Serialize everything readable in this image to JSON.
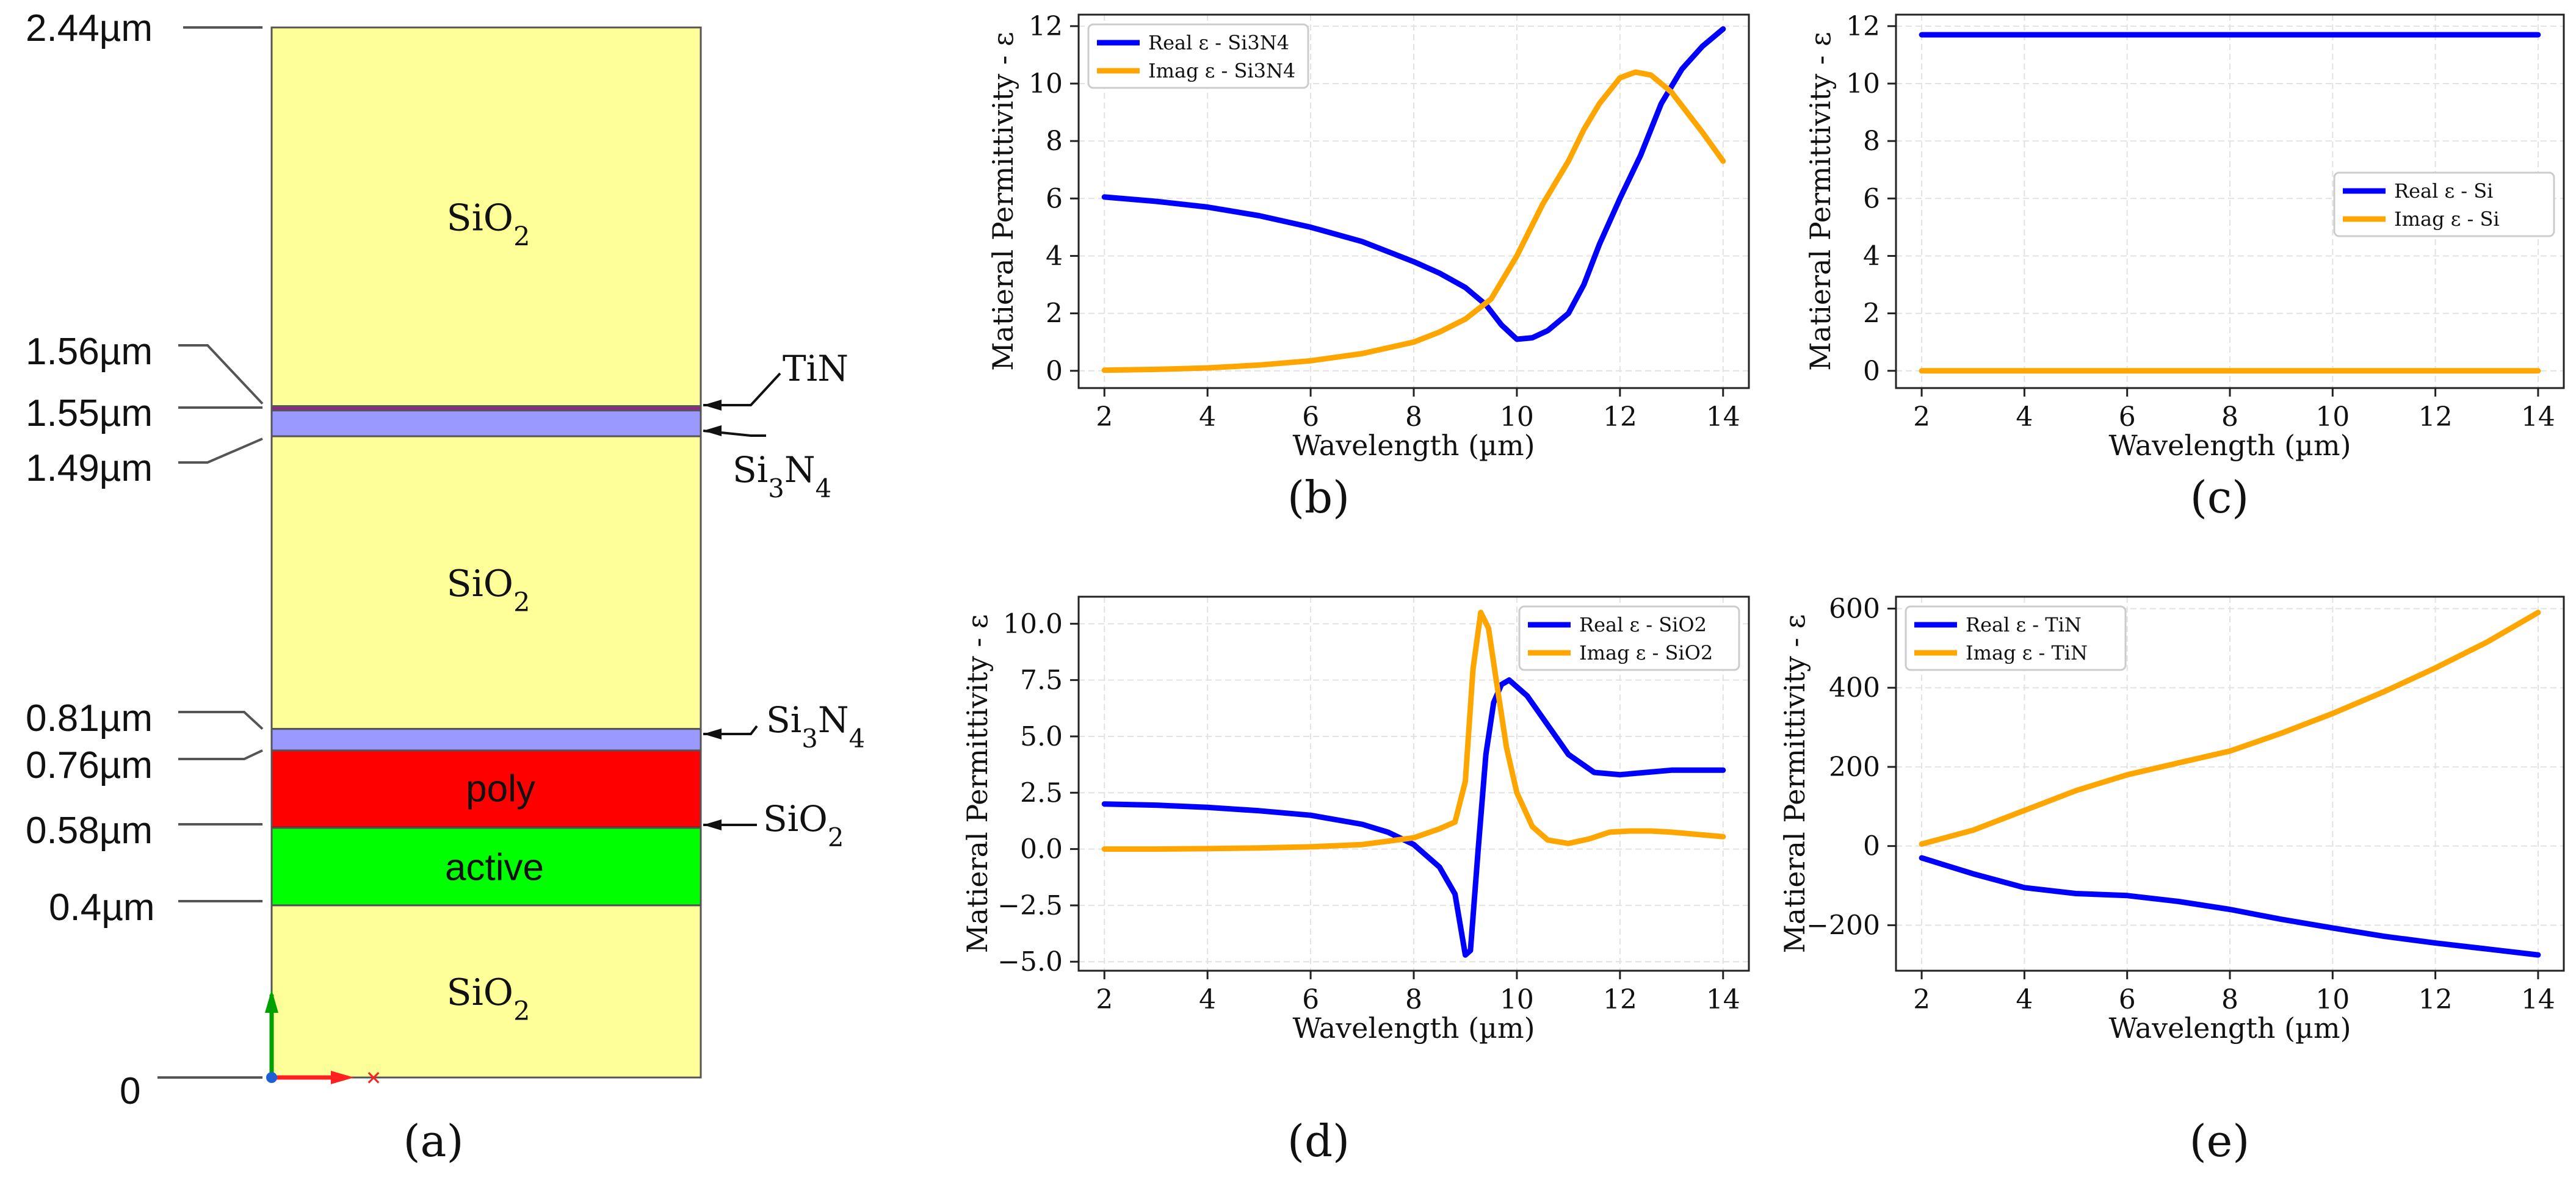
{
  "colors": {
    "real_series": "#0000ff",
    "imag_series": "#ffa500",
    "sio2_layer": "#ffff99",
    "nitride_layer": "#9999ff",
    "tin_layer": "#9b1f8f",
    "poly_layer": "#ff0000",
    "active_layer": "#00ff00",
    "axis_y_arrow": "#00a000",
    "axis_x_arrow": "#ff2020",
    "origin_dot": "#1f5fd6"
  },
  "stack": {
    "panel_label": "(a)",
    "top_label": "2.44µm",
    "layers": [
      {
        "name": "SiO",
        "sub": "2",
        "color_key": "sio2_layer"
      },
      {
        "name": "SiO",
        "sub": "2",
        "color_key": "sio2_layer"
      },
      {
        "name": "poly",
        "sub": "",
        "color_key": "poly_layer"
      },
      {
        "name": "active",
        "sub": "",
        "color_key": "active_layer"
      },
      {
        "name": "SiO",
        "sub": "2",
        "color_key": "sio2_layer"
      }
    ],
    "depths": [
      {
        "label": "2.44µm",
        "value": 2.44
      },
      {
        "label": "1.56µm",
        "value": 1.56
      },
      {
        "label": "1.55µm",
        "value": 1.55
      },
      {
        "label": "1.49µm",
        "value": 1.49
      },
      {
        "label": "0.81µm",
        "value": 0.81
      },
      {
        "label": "0.76µm",
        "value": 0.76
      },
      {
        "label": "0.58µm",
        "value": 0.58
      },
      {
        "label": "0.4µm",
        "value": 0.4
      },
      {
        "label": "0",
        "value": 0
      }
    ],
    "callouts": [
      {
        "label": "TiN",
        "sub": "",
        "parts": []
      },
      {
        "label": "",
        "parts": [
          {
            "t": "Si",
            "s": "3"
          },
          {
            "t": "N",
            "s": "4"
          }
        ]
      },
      {
        "label": "",
        "parts": [
          {
            "t": "Si",
            "s": "3"
          },
          {
            "t": "N",
            "s": "4"
          }
        ]
      },
      {
        "label": "",
        "parts": [
          {
            "t": "SiO",
            "s": "2"
          }
        ]
      }
    ]
  },
  "chart_data": [
    {
      "panel": "(b)",
      "type": "line",
      "xlabel": "Wavelength (µm)",
      "ylabel": "Matieral Permittivity - ε",
      "xlim": [
        1.5,
        14.5
      ],
      "ylim": [
        -0.6,
        12.4
      ],
      "xticks": [
        2,
        4,
        6,
        8,
        10,
        12,
        14
      ],
      "xtick_labels": [
        "2",
        "4",
        "6",
        "8",
        "10",
        "12",
        "14"
      ],
      "yticks": [
        0,
        2,
        4,
        6,
        8,
        10,
        12
      ],
      "ytick_labels": [
        "0",
        "2",
        "4",
        "6",
        "8",
        "10",
        "12"
      ],
      "grid": true,
      "legend": "top-left",
      "series": [
        {
          "name": "Real ε - Si3N4",
          "color_key": "real_series",
          "x": [
            2,
            3,
            4,
            5,
            6,
            7,
            8,
            8.5,
            9,
            9.4,
            9.7,
            10,
            10.3,
            10.6,
            11,
            11.3,
            11.6,
            12,
            12.4,
            12.8,
            13.2,
            13.6,
            14
          ],
          "y": [
            6.05,
            5.9,
            5.7,
            5.4,
            5.0,
            4.5,
            3.8,
            3.4,
            2.9,
            2.3,
            1.6,
            1.1,
            1.15,
            1.4,
            2.0,
            3.0,
            4.4,
            6.0,
            7.5,
            9.3,
            10.5,
            11.3,
            11.9
          ]
        },
        {
          "name": "Imag ε - Si3N4",
          "color_key": "imag_series",
          "x": [
            2,
            3,
            4,
            5,
            6,
            7,
            8,
            8.5,
            9,
            9.5,
            10,
            10.5,
            11,
            11.3,
            11.6,
            12,
            12.3,
            12.6,
            13,
            13.3,
            13.6,
            14
          ],
          "y": [
            0.02,
            0.05,
            0.1,
            0.2,
            0.35,
            0.6,
            1.0,
            1.35,
            1.8,
            2.5,
            4.0,
            5.8,
            7.3,
            8.4,
            9.3,
            10.2,
            10.4,
            10.3,
            9.7,
            9.0,
            8.3,
            7.3
          ]
        }
      ]
    },
    {
      "panel": "(c)",
      "type": "line",
      "xlabel": "Wavelength (µm)",
      "ylabel": "Matieral Permittivity - ε",
      "xlim": [
        1.5,
        14.5
      ],
      "ylim": [
        -0.6,
        12.4
      ],
      "xticks": [
        2,
        4,
        6,
        8,
        10,
        12,
        14
      ],
      "xtick_labels": [
        "2",
        "4",
        "6",
        "8",
        "10",
        "12",
        "14"
      ],
      "yticks": [
        0,
        2,
        4,
        6,
        8,
        10,
        12
      ],
      "ytick_labels": [
        "0",
        "2",
        "4",
        "6",
        "8",
        "10",
        "12"
      ],
      "grid": true,
      "legend": "center-right",
      "series": [
        {
          "name": "Real ε - Si",
          "color_key": "real_series",
          "x": [
            2,
            14
          ],
          "y": [
            11.7,
            11.7
          ]
        },
        {
          "name": "Imag ε - Si",
          "color_key": "imag_series",
          "x": [
            2,
            14
          ],
          "y": [
            0,
            0
          ]
        }
      ]
    },
    {
      "panel": "(d)",
      "type": "line",
      "xlabel": "Wavelength (µm)",
      "ylabel": "Matieral Permittivity -  ε",
      "xlim": [
        1.5,
        14.5
      ],
      "ylim": [
        -5.4,
        11.2
      ],
      "xticks": [
        2,
        4,
        6,
        8,
        10,
        12,
        14
      ],
      "xtick_labels": [
        "2",
        "4",
        "6",
        "8",
        "10",
        "12",
        "14"
      ],
      "yticks": [
        -5.0,
        -2.5,
        0.0,
        2.5,
        5.0,
        7.5,
        10.0
      ],
      "ytick_labels": [
        "−5.0",
        "−2.5",
        "0.0",
        "2.5",
        "5.0",
        "7.5",
        "10.0"
      ],
      "grid": true,
      "legend": "top-right",
      "series": [
        {
          "name": "Real ε - SiO2",
          "color_key": "real_series",
          "x": [
            2,
            3,
            4,
            5,
            6,
            7,
            7.5,
            8,
            8.5,
            8.8,
            9.0,
            9.1,
            9.25,
            9.4,
            9.55,
            9.7,
            9.85,
            10.2,
            10.6,
            11,
            11.5,
            12,
            13,
            14
          ],
          "y": [
            2.0,
            1.95,
            1.85,
            1.7,
            1.5,
            1.1,
            0.75,
            0.2,
            -0.8,
            -2.0,
            -4.7,
            -4.5,
            0.0,
            4.2,
            6.5,
            7.3,
            7.5,
            6.8,
            5.5,
            4.2,
            3.4,
            3.3,
            3.5,
            3.5
          ]
        },
        {
          "name": "Imag ε - SiO2",
          "color_key": "imag_series",
          "x": [
            2,
            3,
            4,
            5,
            6,
            7,
            8,
            8.5,
            8.8,
            9.0,
            9.15,
            9.3,
            9.45,
            9.6,
            9.8,
            10.0,
            10.3,
            10.6,
            11,
            11.4,
            11.8,
            12.2,
            12.6,
            13,
            14
          ],
          "y": [
            0.0,
            0.0,
            0.02,
            0.05,
            0.1,
            0.2,
            0.5,
            0.9,
            1.2,
            3.0,
            8.0,
            10.5,
            9.8,
            7.5,
            4.5,
            2.5,
            1.0,
            0.4,
            0.25,
            0.45,
            0.75,
            0.8,
            0.8,
            0.75,
            0.55
          ]
        }
      ]
    },
    {
      "panel": "(e)",
      "type": "line",
      "xlabel": "Wavelength (µm)",
      "ylabel": "Matieral Permittivity -  ε",
      "xlim": [
        1.5,
        14.5
      ],
      "ylim": [
        -315,
        630
      ],
      "xticks": [
        2,
        4,
        6,
        8,
        10,
        12,
        14
      ],
      "xtick_labels": [
        "2",
        "4",
        "6",
        "8",
        "10",
        "12",
        "14"
      ],
      "yticks": [
        -200,
        0,
        200,
        400,
        600
      ],
      "ytick_labels": [
        "−200",
        "0",
        "200",
        "400",
        "600"
      ],
      "grid": true,
      "legend": "top-left",
      "series": [
        {
          "name": "Real ε - TiN",
          "color_key": "real_series",
          "x": [
            2,
            3,
            4,
            5,
            6,
            7,
            8,
            9,
            10,
            11,
            12,
            13,
            14
          ],
          "y": [
            -30,
            -70,
            -105,
            -120,
            -125,
            -140,
            -160,
            -185,
            -207,
            -228,
            -245,
            -260,
            -275
          ]
        },
        {
          "name": "Imag ε - TiN",
          "color_key": "imag_series",
          "x": [
            2,
            3,
            4,
            5,
            6,
            7,
            8,
            9,
            10,
            11,
            12,
            13,
            14
          ],
          "y": [
            5,
            40,
            90,
            140,
            180,
            210,
            240,
            285,
            335,
            390,
            450,
            515,
            590
          ]
        }
      ]
    }
  ]
}
